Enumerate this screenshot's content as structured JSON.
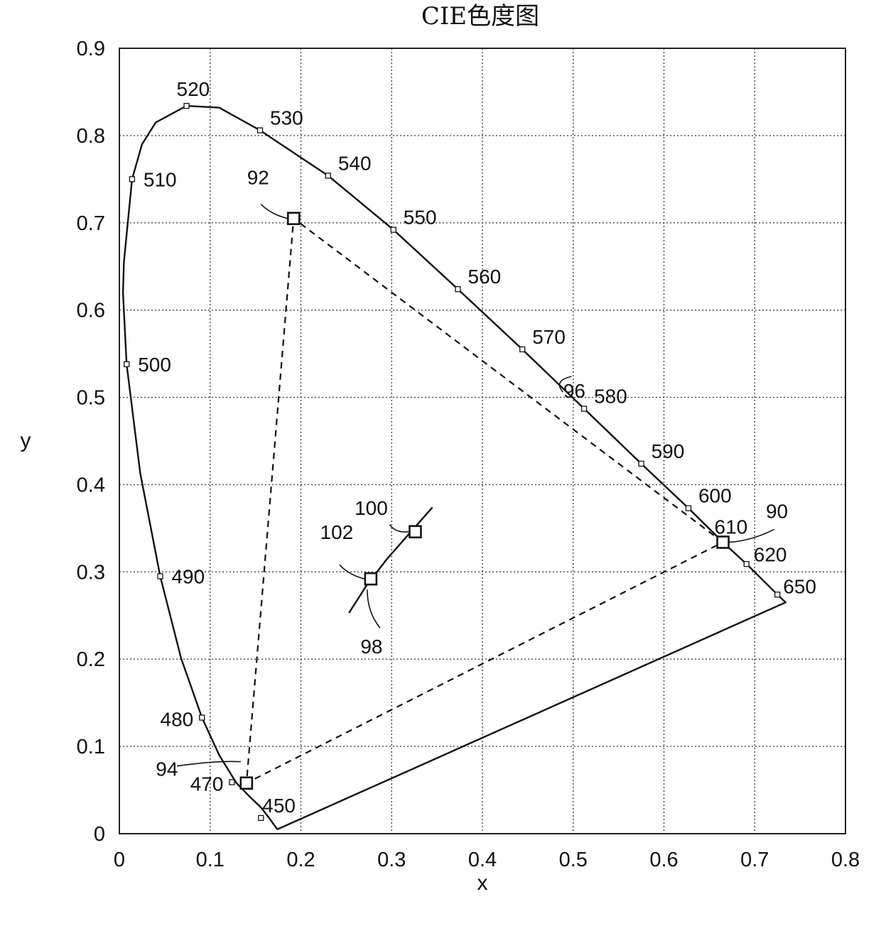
{
  "chart_data": {
    "type": "line",
    "title": "CIE色度图",
    "xlabel": "x",
    "ylabel": "y",
    "xlim": [
      0,
      0.8
    ],
    "ylim": [
      0,
      0.9
    ],
    "x_ticks": [
      "0",
      "0.1",
      "0.2",
      "0.3",
      "0.4",
      "0.5",
      "0.6",
      "0.7",
      "0.8"
    ],
    "y_ticks": [
      "0",
      "0.1",
      "0.2",
      "0.3",
      "0.4",
      "0.5",
      "0.6",
      "0.7",
      "0.8",
      "0.9"
    ],
    "grid": true,
    "series": [
      {
        "points": [
          [
            0.174,
            0.005
          ],
          [
            0.165,
            0.018
          ],
          [
            0.156,
            0.03
          ],
          [
            0.144,
            0.042
          ],
          [
            0.129,
            0.058
          ],
          [
            0.11,
            0.09
          ],
          [
            0.091,
            0.133
          ],
          [
            0.068,
            0.201
          ],
          [
            0.045,
            0.295
          ],
          [
            0.023,
            0.413
          ],
          [
            0.008,
            0.538
          ],
          [
            0.004,
            0.62
          ],
          [
            0.005,
            0.655
          ],
          [
            0.014,
            0.75
          ],
          [
            0.025,
            0.79
          ],
          [
            0.04,
            0.815
          ],
          [
            0.074,
            0.834
          ],
          [
            0.11,
            0.832
          ],
          [
            0.155,
            0.806
          ],
          [
            0.23,
            0.754
          ],
          [
            0.302,
            0.692
          ],
          [
            0.373,
            0.624
          ],
          [
            0.444,
            0.555
          ],
          [
            0.512,
            0.487
          ],
          [
            0.575,
            0.424
          ],
          [
            0.627,
            0.373
          ],
          [
            0.665,
            0.334
          ],
          [
            0.691,
            0.309
          ],
          [
            0.725,
            0.274
          ],
          [
            0.734,
            0.265
          ],
          [
            0.174,
            0.005
          ]
        ],
        "style": "solid"
      },
      {
        "points": [
          [
            0.665,
            0.334
          ],
          [
            0.192,
            0.705
          ],
          [
            0.14,
            0.058
          ],
          [
            0.665,
            0.334
          ]
        ],
        "style": "dashed"
      },
      {
        "points": [
          [
            0.253,
            0.253
          ],
          [
            0.272,
            0.284
          ],
          [
            0.295,
            0.315
          ],
          [
            0.322,
            0.347
          ],
          [
            0.345,
            0.374
          ]
        ],
        "style": "solid"
      }
    ],
    "wavelength_labels": [
      {
        "text": "520",
        "x": 0.074,
        "y": 0.834
      },
      {
        "text": "530",
        "x": 0.155,
        "y": 0.806
      },
      {
        "text": "510",
        "x": 0.014,
        "y": 0.75
      },
      {
        "text": "540",
        "x": 0.23,
        "y": 0.754
      },
      {
        "text": "550",
        "x": 0.302,
        "y": 0.692
      },
      {
        "text": "560",
        "x": 0.373,
        "y": 0.624
      },
      {
        "text": "570",
        "x": 0.444,
        "y": 0.555
      },
      {
        "text": "500",
        "x": 0.008,
        "y": 0.538
      },
      {
        "text": "580",
        "x": 0.512,
        "y": 0.487
      },
      {
        "text": "590",
        "x": 0.575,
        "y": 0.424
      },
      {
        "text": "600",
        "x": 0.627,
        "y": 0.373
      },
      {
        "text": "610",
        "x": 0.665,
        "y": 0.334
      },
      {
        "text": "620",
        "x": 0.691,
        "y": 0.309
      },
      {
        "text": "650",
        "x": 0.725,
        "y": 0.274
      },
      {
        "text": "490",
        "x": 0.045,
        "y": 0.295
      },
      {
        "text": "480",
        "x": 0.091,
        "y": 0.133
      },
      {
        "text": "470",
        "x": 0.124,
        "y": 0.059
      },
      {
        "text": "450",
        "x": 0.156,
        "y": 0.018
      }
    ],
    "reference_labels": [
      {
        "text": "92",
        "x": 0.192,
        "y": 0.705
      },
      {
        "text": "96",
        "x": 0.47,
        "y": 0.48
      },
      {
        "text": "90",
        "x": 0.665,
        "y": 0.334
      },
      {
        "text": "100",
        "x": 0.326,
        "y": 0.346
      },
      {
        "text": "102",
        "x": 0.277,
        "y": 0.292
      },
      {
        "text": "98",
        "x": 0.27,
        "y": 0.27
      },
      {
        "text": "94",
        "x": 0.14,
        "y": 0.058
      }
    ],
    "marked_points": [
      {
        "x": 0.665,
        "y": 0.334
      },
      {
        "x": 0.192,
        "y": 0.705
      },
      {
        "x": 0.14,
        "y": 0.058
      },
      {
        "x": 0.326,
        "y": 0.346
      },
      {
        "x": 0.277,
        "y": 0.292
      }
    ]
  }
}
